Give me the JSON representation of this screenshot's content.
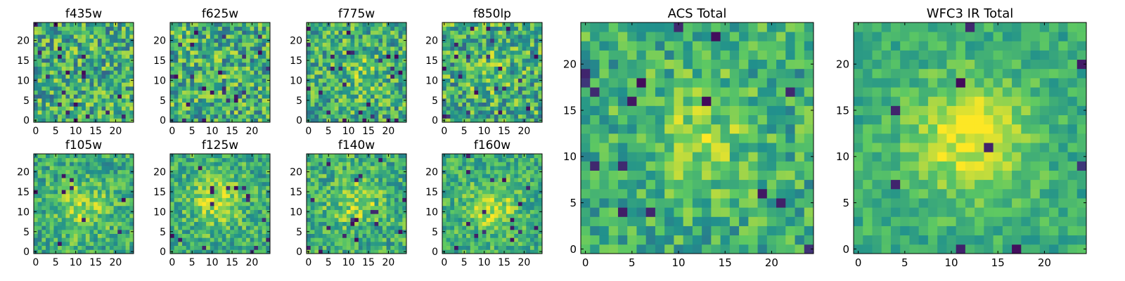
{
  "colormap": [
    "#440154",
    "#3b528b",
    "#21918c",
    "#5ec962",
    "#fde725"
  ],
  "chart_data": [
    {
      "type": "heatmap",
      "title": "f435w",
      "grid_size": 25,
      "xticks": [
        0,
        5,
        10,
        15,
        20
      ],
      "yticks": [
        0,
        5,
        10,
        15,
        20
      ],
      "grid": false,
      "pattern": "noise",
      "peak_center": [
        12,
        12
      ],
      "peak_strength": 0.0,
      "noise_level": 1.0,
      "block": 1
    },
    {
      "type": "heatmap",
      "title": "f625w",
      "grid_size": 25,
      "xticks": [
        0,
        5,
        10,
        15,
        20
      ],
      "yticks": [
        0,
        5,
        10,
        15,
        20
      ],
      "grid": false,
      "pattern": "noise",
      "peak_center": [
        12,
        12
      ],
      "peak_strength": 0.05,
      "noise_level": 1.0,
      "block": 1
    },
    {
      "type": "heatmap",
      "title": "f775w",
      "grid_size": 25,
      "xticks": [
        0,
        5,
        10,
        15,
        20
      ],
      "yticks": [
        0,
        5,
        10,
        15,
        20
      ],
      "grid": false,
      "pattern": "faint-source",
      "peak_center": [
        13,
        12
      ],
      "peak_strength": 0.25,
      "noise_level": 0.9,
      "block": 1
    },
    {
      "type": "heatmap",
      "title": "f850lp",
      "grid_size": 25,
      "xticks": [
        0,
        5,
        10,
        15,
        20
      ],
      "yticks": [
        0,
        5,
        10,
        15,
        20
      ],
      "grid": false,
      "pattern": "faint-source",
      "peak_center": [
        12,
        12
      ],
      "peak_strength": 0.15,
      "noise_level": 1.0,
      "block": 1
    },
    {
      "type": "heatmap",
      "title": "f105w",
      "grid_size": 25,
      "xticks": [
        0,
        5,
        10,
        15,
        20
      ],
      "yticks": [
        0,
        5,
        10,
        15,
        20
      ],
      "grid": false,
      "pattern": "source",
      "peak_center": [
        12,
        11
      ],
      "peak_strength": 0.55,
      "noise_level": 0.7,
      "block": 1
    },
    {
      "type": "heatmap",
      "title": "f125w",
      "grid_size": 25,
      "xticks": [
        0,
        5,
        10,
        15,
        20
      ],
      "yticks": [
        0,
        5,
        10,
        15,
        20
      ],
      "grid": false,
      "pattern": "source",
      "peak_center": [
        11,
        13
      ],
      "peak_strength": 0.6,
      "noise_level": 0.7,
      "block": 1
    },
    {
      "type": "heatmap",
      "title": "f140w",
      "grid_size": 25,
      "xticks": [
        0,
        5,
        10,
        15,
        20
      ],
      "yticks": [
        0,
        5,
        10,
        15,
        20
      ],
      "grid": false,
      "pattern": "source",
      "peak_center": [
        12,
        12
      ],
      "peak_strength": 0.5,
      "noise_level": 0.75,
      "block": 1
    },
    {
      "type": "heatmap",
      "title": "f160w",
      "grid_size": 25,
      "xticks": [
        0,
        5,
        10,
        15,
        20
      ],
      "yticks": [
        0,
        5,
        10,
        15,
        20
      ],
      "grid": false,
      "pattern": "source",
      "peak_center": [
        12,
        11
      ],
      "peak_strength": 0.65,
      "noise_level": 0.65,
      "block": 1
    },
    {
      "type": "heatmap",
      "title": "ACS Total",
      "grid_size": 25,
      "xticks": [
        0,
        5,
        10,
        15,
        20
      ],
      "yticks": [
        0,
        5,
        10,
        15,
        20
      ],
      "grid": false,
      "pattern": "source",
      "peak_center": [
        12,
        12
      ],
      "peak_strength": 0.45,
      "noise_level": 0.7,
      "block": 1
    },
    {
      "type": "heatmap",
      "title": "WFC3 IR Total",
      "grid_size": 25,
      "xticks": [
        0,
        5,
        10,
        15,
        20
      ],
      "yticks": [
        0,
        5,
        10,
        15,
        20
      ],
      "grid": false,
      "pattern": "source",
      "peak_center": [
        12,
        12
      ],
      "peak_strength": 0.85,
      "noise_level": 0.45,
      "block": 1
    }
  ]
}
